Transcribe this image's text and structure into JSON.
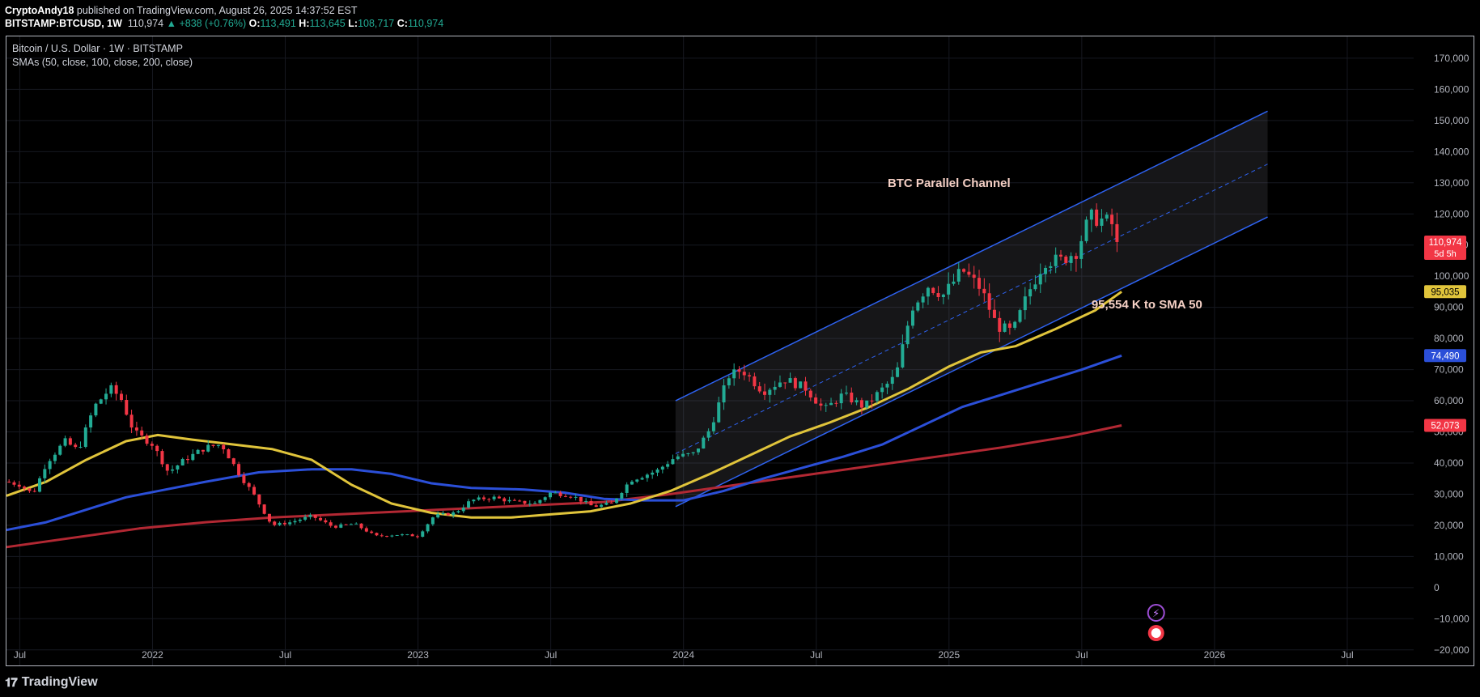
{
  "header": {
    "author": "CryptoAndy18",
    "published": "published on TradingView.com, August 26, 2025 14:37:52 EST",
    "symbol": "BITSTAMP:BTCUSD, 1W",
    "last": "110,974",
    "change": "+838 (+0.76%)",
    "open": "113,491",
    "high": "113,645",
    "low": "108,717",
    "close": "110,974"
  },
  "legend": {
    "title": "Bitcoin / U.S. Dollar · 1W · BITSTAMP",
    "indicators": "SMAs (50, close, 100, close, 200, close)"
  },
  "footer": {
    "brand": "TradingView"
  },
  "chart_data": {
    "type": "candlestick",
    "title": "Bitcoin / U.S. Dollar · 1W · BITSTAMP",
    "ylim": [
      -25000,
      177000
    ],
    "y_ticks": [
      170000,
      160000,
      150000,
      140000,
      130000,
      120000,
      110000,
      100000,
      90000,
      80000,
      70000,
      60000,
      50000,
      40000,
      30000,
      20000,
      10000,
      0,
      -10000,
      -20000
    ],
    "x_range": [
      2021.45,
      2026.75
    ],
    "x_ticks": [
      {
        "t": 2021.5,
        "label": "Jul"
      },
      {
        "t": 2022.0,
        "label": "2022"
      },
      {
        "t": 2022.5,
        "label": "Jul"
      },
      {
        "t": 2023.0,
        "label": "2023"
      },
      {
        "t": 2023.5,
        "label": "Jul"
      },
      {
        "t": 2024.0,
        "label": "2024"
      },
      {
        "t": 2024.5,
        "label": "Jul"
      },
      {
        "t": 2025.0,
        "label": "2025"
      },
      {
        "t": 2025.5,
        "label": "Jul"
      },
      {
        "t": 2026.0,
        "label": "2026"
      },
      {
        "t": 2026.5,
        "label": "Jul"
      }
    ],
    "price_path": [
      [
        2021.45,
        34000
      ],
      [
        2021.5,
        33000
      ],
      [
        2021.55,
        30000
      ],
      [
        2021.6,
        40000
      ],
      [
        2021.67,
        47000
      ],
      [
        2021.72,
        44000
      ],
      [
        2021.78,
        58000
      ],
      [
        2021.84,
        64000
      ],
      [
        2021.88,
        61000
      ],
      [
        2021.93,
        50000
      ],
      [
        2022.0,
        46000
      ],
      [
        2022.06,
        37000
      ],
      [
        2022.12,
        41000
      ],
      [
        2022.2,
        45000
      ],
      [
        2022.26,
        46000
      ],
      [
        2022.33,
        36000
      ],
      [
        2022.38,
        30000
      ],
      [
        2022.45,
        20000
      ],
      [
        2022.52,
        21000
      ],
      [
        2022.6,
        23000
      ],
      [
        2022.68,
        19500
      ],
      [
        2022.76,
        20500
      ],
      [
        2022.84,
        16500
      ],
      [
        2022.92,
        17000
      ],
      [
        2023.0,
        16600
      ],
      [
        2023.06,
        23000
      ],
      [
        2023.14,
        24000
      ],
      [
        2023.2,
        28000
      ],
      [
        2023.28,
        29000
      ],
      [
        2023.36,
        27500
      ],
      [
        2023.44,
        27000
      ],
      [
        2023.5,
        30500
      ],
      [
        2023.58,
        29500
      ],
      [
        2023.66,
        26000
      ],
      [
        2023.73,
        27000
      ],
      [
        2023.8,
        34500
      ],
      [
        2023.9,
        37500
      ],
      [
        2023.97,
        42000
      ],
      [
        2024.04,
        43000
      ],
      [
        2024.1,
        51000
      ],
      [
        2024.17,
        68000
      ],
      [
        2024.22,
        70000
      ],
      [
        2024.3,
        63000
      ],
      [
        2024.38,
        67000
      ],
      [
        2024.46,
        64000
      ],
      [
        2024.53,
        57000
      ],
      [
        2024.6,
        62000
      ],
      [
        2024.68,
        58000
      ],
      [
        2024.74,
        63000
      ],
      [
        2024.8,
        68000
      ],
      [
        2024.86,
        90000
      ],
      [
        2024.92,
        97000
      ],
      [
        2024.98,
        94000
      ],
      [
        2025.05,
        102000
      ],
      [
        2025.12,
        96000
      ],
      [
        2025.18,
        84000
      ],
      [
        2025.24,
        82000
      ],
      [
        2025.3,
        95000
      ],
      [
        2025.36,
        105000
      ],
      [
        2025.42,
        105000
      ],
      [
        2025.48,
        108000
      ],
      [
        2025.53,
        119000
      ],
      [
        2025.58,
        118000
      ],
      [
        2025.61,
        117000
      ],
      [
        2025.63,
        115000
      ],
      [
        2025.65,
        110974
      ]
    ],
    "series": [
      {
        "name": "SMA 50",
        "color": "#e0c43b",
        "last": "95,035",
        "points": [
          [
            2021.45,
            29500
          ],
          [
            2021.6,
            34000
          ],
          [
            2021.75,
            41000
          ],
          [
            2021.9,
            47000
          ],
          [
            2022.02,
            49000
          ],
          [
            2022.15,
            47500
          ],
          [
            2022.3,
            46000
          ],
          [
            2022.45,
            44500
          ],
          [
            2022.6,
            41000
          ],
          [
            2022.75,
            33000
          ],
          [
            2022.9,
            27000
          ],
          [
            2023.05,
            24000
          ],
          [
            2023.2,
            22500
          ],
          [
            2023.35,
            22500
          ],
          [
            2023.5,
            23500
          ],
          [
            2023.65,
            24500
          ],
          [
            2023.8,
            27000
          ],
          [
            2023.95,
            31000
          ],
          [
            2024.1,
            36500
          ],
          [
            2024.25,
            42500
          ],
          [
            2024.4,
            48500
          ],
          [
            2024.55,
            53000
          ],
          [
            2024.7,
            58000
          ],
          [
            2024.85,
            64000
          ],
          [
            2025.0,
            71000
          ],
          [
            2025.12,
            75500
          ],
          [
            2025.25,
            77500
          ],
          [
            2025.4,
            83000
          ],
          [
            2025.55,
            89000
          ],
          [
            2025.65,
            95035
          ]
        ]
      },
      {
        "name": "SMA 100",
        "color": "#2b4fd8",
        "last": "74,490",
        "points": [
          [
            2021.45,
            18500
          ],
          [
            2021.6,
            21000
          ],
          [
            2021.75,
            25000
          ],
          [
            2021.9,
            29000
          ],
          [
            2022.05,
            31500
          ],
          [
            2022.2,
            34000
          ],
          [
            2022.4,
            37000
          ],
          [
            2022.6,
            38000
          ],
          [
            2022.75,
            38000
          ],
          [
            2022.9,
            36500
          ],
          [
            2023.05,
            33500
          ],
          [
            2023.2,
            32000
          ],
          [
            2023.4,
            31500
          ],
          [
            2023.55,
            30500
          ],
          [
            2023.7,
            28500
          ],
          [
            2023.85,
            28000
          ],
          [
            2024.0,
            28000
          ],
          [
            2024.15,
            31000
          ],
          [
            2024.3,
            35000
          ],
          [
            2024.45,
            38500
          ],
          [
            2024.6,
            42000
          ],
          [
            2024.75,
            46000
          ],
          [
            2024.9,
            52000
          ],
          [
            2025.05,
            58000
          ],
          [
            2025.2,
            62000
          ],
          [
            2025.35,
            66000
          ],
          [
            2025.5,
            70000
          ],
          [
            2025.65,
            74490
          ]
        ]
      },
      {
        "name": "SMA 200",
        "color": "#b22833",
        "last": "52,073",
        "points": [
          [
            2021.45,
            13000
          ],
          [
            2021.7,
            16000
          ],
          [
            2021.95,
            19000
          ],
          [
            2022.2,
            21000
          ],
          [
            2022.45,
            22500
          ],
          [
            2022.7,
            23500
          ],
          [
            2022.95,
            24500
          ],
          [
            2023.2,
            25500
          ],
          [
            2023.45,
            26500
          ],
          [
            2023.7,
            27500
          ],
          [
            2023.95,
            30000
          ],
          [
            2024.2,
            33000
          ],
          [
            2024.45,
            36000
          ],
          [
            2024.7,
            39000
          ],
          [
            2024.95,
            42000
          ],
          [
            2025.2,
            45000
          ],
          [
            2025.45,
            48500
          ],
          [
            2025.65,
            52073
          ]
        ]
      }
    ],
    "channel": {
      "upper": [
        [
          2023.97,
          60000
        ],
        [
          2026.2,
          153000
        ]
      ],
      "mid": [
        [
          2023.97,
          43000
        ],
        [
          2026.2,
          136000
        ]
      ],
      "lower": [
        [
          2023.97,
          26000
        ],
        [
          2026.2,
          119000
        ]
      ]
    },
    "annotations": [
      {
        "text": "BTC Parallel Channel",
        "t": 2025.0,
        "v": 130000
      },
      {
        "text": "95,554 K to SMA 50",
        "t": 2025.5,
        "v": 91000
      }
    ],
    "price_labels": [
      {
        "value": 110974,
        "text": "110,974",
        "sub": "5d 5h",
        "color": "#f23645",
        "fg": "#ffffff"
      },
      {
        "value": 95035,
        "text": "95,035",
        "color": "#e0c43b",
        "fg": "#000000"
      },
      {
        "value": 74490,
        "text": "74,490",
        "color": "#2b4fd8",
        "fg": "#ffffff"
      },
      {
        "value": 52073,
        "text": "52,073",
        "color": "#f23645",
        "fg": "#ffffff"
      }
    ]
  }
}
